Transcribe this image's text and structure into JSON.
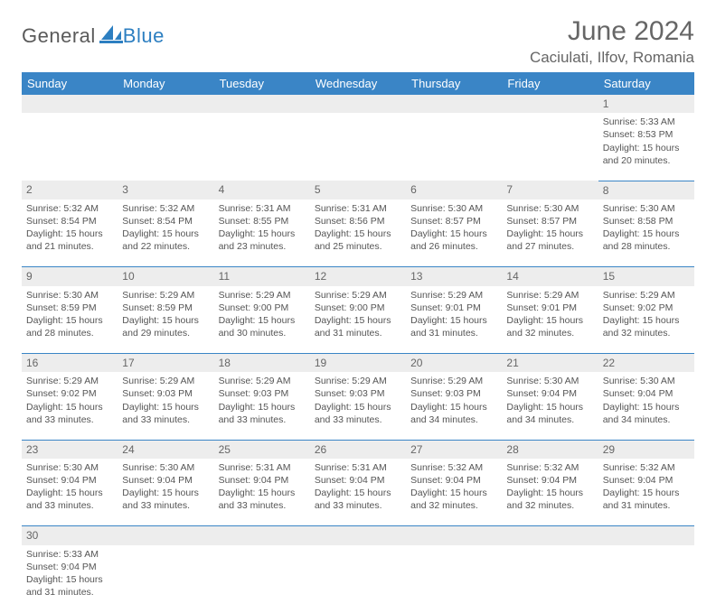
{
  "logo": {
    "text1": "General",
    "text2": "Blue"
  },
  "title": "June 2024",
  "location": "Caciulati, Ilfov, Romania",
  "colors": {
    "header_bg": "#3a85c6",
    "header_text": "#ffffff",
    "daynum_bg": "#ededed",
    "row_border": "#3a85c6",
    "logo_blue": "#2d7fc1",
    "body_text": "#555555"
  },
  "type": "table",
  "columns": [
    "Sunday",
    "Monday",
    "Tuesday",
    "Wednesday",
    "Thursday",
    "Friday",
    "Saturday"
  ],
  "weeks": [
    [
      null,
      null,
      null,
      null,
      null,
      null,
      {
        "n": "1",
        "sr": "5:33 AM",
        "ss": "8:53 PM",
        "dl": "15 hours and 20 minutes."
      }
    ],
    [
      {
        "n": "2",
        "sr": "5:32 AM",
        "ss": "8:54 PM",
        "dl": "15 hours and 21 minutes."
      },
      {
        "n": "3",
        "sr": "5:32 AM",
        "ss": "8:54 PM",
        "dl": "15 hours and 22 minutes."
      },
      {
        "n": "4",
        "sr": "5:31 AM",
        "ss": "8:55 PM",
        "dl": "15 hours and 23 minutes."
      },
      {
        "n": "5",
        "sr": "5:31 AM",
        "ss": "8:56 PM",
        "dl": "15 hours and 25 minutes."
      },
      {
        "n": "6",
        "sr": "5:30 AM",
        "ss": "8:57 PM",
        "dl": "15 hours and 26 minutes."
      },
      {
        "n": "7",
        "sr": "5:30 AM",
        "ss": "8:57 PM",
        "dl": "15 hours and 27 minutes."
      },
      {
        "n": "8",
        "sr": "5:30 AM",
        "ss": "8:58 PM",
        "dl": "15 hours and 28 minutes."
      }
    ],
    [
      {
        "n": "9",
        "sr": "5:30 AM",
        "ss": "8:59 PM",
        "dl": "15 hours and 28 minutes."
      },
      {
        "n": "10",
        "sr": "5:29 AM",
        "ss": "8:59 PM",
        "dl": "15 hours and 29 minutes."
      },
      {
        "n": "11",
        "sr": "5:29 AM",
        "ss": "9:00 PM",
        "dl": "15 hours and 30 minutes."
      },
      {
        "n": "12",
        "sr": "5:29 AM",
        "ss": "9:00 PM",
        "dl": "15 hours and 31 minutes."
      },
      {
        "n": "13",
        "sr": "5:29 AM",
        "ss": "9:01 PM",
        "dl": "15 hours and 31 minutes."
      },
      {
        "n": "14",
        "sr": "5:29 AM",
        "ss": "9:01 PM",
        "dl": "15 hours and 32 minutes."
      },
      {
        "n": "15",
        "sr": "5:29 AM",
        "ss": "9:02 PM",
        "dl": "15 hours and 32 minutes."
      }
    ],
    [
      {
        "n": "16",
        "sr": "5:29 AM",
        "ss": "9:02 PM",
        "dl": "15 hours and 33 minutes."
      },
      {
        "n": "17",
        "sr": "5:29 AM",
        "ss": "9:03 PM",
        "dl": "15 hours and 33 minutes."
      },
      {
        "n": "18",
        "sr": "5:29 AM",
        "ss": "9:03 PM",
        "dl": "15 hours and 33 minutes."
      },
      {
        "n": "19",
        "sr": "5:29 AM",
        "ss": "9:03 PM",
        "dl": "15 hours and 33 minutes."
      },
      {
        "n": "20",
        "sr": "5:29 AM",
        "ss": "9:03 PM",
        "dl": "15 hours and 34 minutes."
      },
      {
        "n": "21",
        "sr": "5:30 AM",
        "ss": "9:04 PM",
        "dl": "15 hours and 34 minutes."
      },
      {
        "n": "22",
        "sr": "5:30 AM",
        "ss": "9:04 PM",
        "dl": "15 hours and 34 minutes."
      }
    ],
    [
      {
        "n": "23",
        "sr": "5:30 AM",
        "ss": "9:04 PM",
        "dl": "15 hours and 33 minutes."
      },
      {
        "n": "24",
        "sr": "5:30 AM",
        "ss": "9:04 PM",
        "dl": "15 hours and 33 minutes."
      },
      {
        "n": "25",
        "sr": "5:31 AM",
        "ss": "9:04 PM",
        "dl": "15 hours and 33 minutes."
      },
      {
        "n": "26",
        "sr": "5:31 AM",
        "ss": "9:04 PM",
        "dl": "15 hours and 33 minutes."
      },
      {
        "n": "27",
        "sr": "5:32 AM",
        "ss": "9:04 PM",
        "dl": "15 hours and 32 minutes."
      },
      {
        "n": "28",
        "sr": "5:32 AM",
        "ss": "9:04 PM",
        "dl": "15 hours and 32 minutes."
      },
      {
        "n": "29",
        "sr": "5:32 AM",
        "ss": "9:04 PM",
        "dl": "15 hours and 31 minutes."
      }
    ],
    [
      {
        "n": "30",
        "sr": "5:33 AM",
        "ss": "9:04 PM",
        "dl": "15 hours and 31 minutes."
      },
      null,
      null,
      null,
      null,
      null,
      null
    ]
  ],
  "labels": {
    "sunrise": "Sunrise: ",
    "sunset": "Sunset: ",
    "daylight": "Daylight: "
  }
}
